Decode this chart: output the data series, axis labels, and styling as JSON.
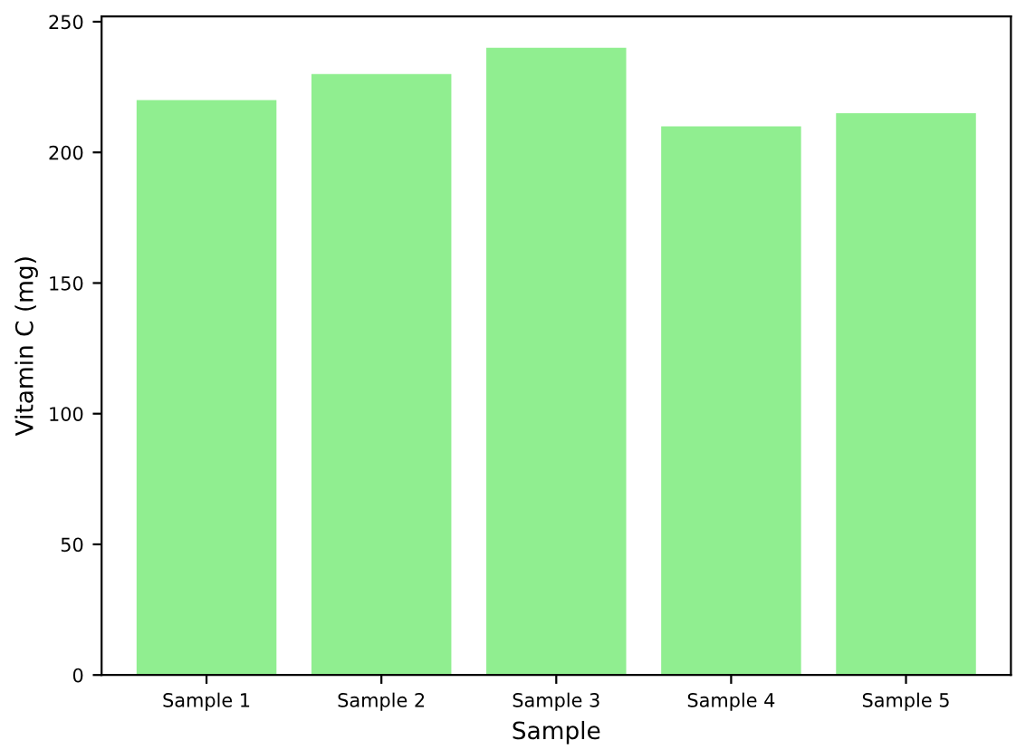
{
  "chart_data": {
    "type": "bar",
    "xlabel": "Sample",
    "ylabel": "Vitamin C (mg)",
    "categories": [
      "Sample 1",
      "Sample 2",
      "Sample 3",
      "Sample 4",
      "Sample 5"
    ],
    "values": [
      220,
      230,
      240,
      210,
      215
    ],
    "color": "#90ee90",
    "ylim": [
      0,
      252
    ],
    "yticks": [
      0,
      50,
      100,
      150,
      200,
      250
    ],
    "grid": false
  }
}
